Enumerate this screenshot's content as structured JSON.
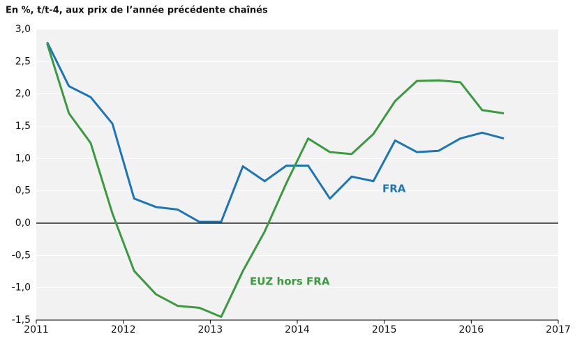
{
  "chart_data": {
    "type": "line",
    "title": "En %, t/t-4, aux prix de l’année précédente chaînés",
    "x": [
      2011.125,
      2011.375,
      2011.625,
      2011.875,
      2012.125,
      2012.375,
      2012.625,
      2012.875,
      2013.125,
      2013.375,
      2013.625,
      2013.875,
      2014.125,
      2014.375,
      2014.625,
      2014.875,
      2015.125,
      2015.375,
      2015.625,
      2015.875,
      2016.125,
      2016.375
    ],
    "series": [
      {
        "name": "FRA",
        "color": "#1b75b9",
        "values": [
          2.8,
          2.12,
          1.95,
          1.54,
          0.38,
          0.25,
          0.21,
          0.02,
          0.02,
          0.88,
          0.65,
          0.89,
          0.89,
          0.38,
          0.72,
          0.65,
          1.28,
          1.1,
          1.12,
          1.31,
          1.4,
          1.31
        ]
      },
      {
        "name": "EUZ hors FRA",
        "color": "#3a9a3e",
        "values": [
          2.78,
          1.7,
          1.24,
          0.15,
          -0.74,
          -1.1,
          -1.28,
          -1.31,
          -1.45,
          -0.74,
          -0.13,
          0.62,
          1.31,
          1.1,
          1.07,
          1.38,
          1.89,
          2.2,
          2.21,
          2.18,
          1.75,
          1.7
        ]
      }
    ],
    "xlim": [
      2011,
      2017
    ],
    "xticks": [
      2011,
      2012,
      2013,
      2014,
      2015,
      2016,
      2017
    ],
    "ylim": [
      -1.5,
      3.0
    ],
    "yticks": [
      {
        "value": -1.5,
        "label": "-1,5"
      },
      {
        "value": -1.0,
        "label": "-1,0"
      },
      {
        "value": -0.5,
        "label": "-0,5"
      },
      {
        "value": 0,
        "label": "0,0"
      },
      {
        "value": 0.5,
        "label": "0,5"
      },
      {
        "value": 1.0,
        "label": "1,0"
      },
      {
        "value": 1.5,
        "label": "1,5"
      },
      {
        "value": 2.0,
        "label": "2,0"
      },
      {
        "value": 2.5,
        "label": "2,5"
      },
      {
        "value": 3.0,
        "label": "3,0"
      }
    ],
    "grid": true
  }
}
